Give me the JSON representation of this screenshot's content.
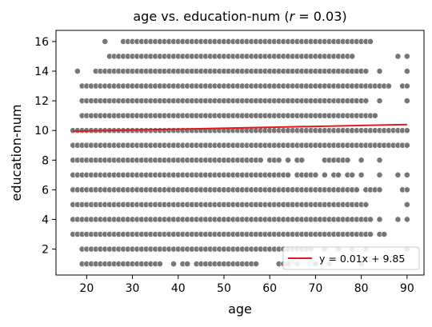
{
  "chart_data": {
    "type": "scatter",
    "title_main": "age vs. education-num (",
    "title_r": "r",
    "title_rest": " = 0.03)",
    "xlabel": "age",
    "ylabel": "education-num",
    "xlim": [
      13.3,
      93.7
    ],
    "ylim": [
      0.25,
      16.75
    ],
    "xticks": [
      20,
      30,
      40,
      50,
      60,
      70,
      80,
      90
    ],
    "yticks": [
      2,
      4,
      6,
      8,
      10,
      12,
      14,
      16
    ],
    "grid": false,
    "legend": {
      "placement": "lower-right",
      "entries": [
        {
          "label": "y = 0.01x + 9.85",
          "color": "#e41a1c"
        }
      ]
    },
    "marker_color": "#777777",
    "fit_line": {
      "color": "#e41a1c",
      "x": [
        17,
        90
      ],
      "y": [
        9.95,
        10.4
      ]
    },
    "rows": [
      {
        "education_num": 16,
        "ages": "24,28-82"
      },
      {
        "education_num": 15,
        "ages": "25-78,88,90"
      },
      {
        "education_num": 14,
        "ages": "18,22-81,84,90"
      },
      {
        "education_num": 13,
        "ages": "19-86,89,90"
      },
      {
        "education_num": 12,
        "ages": "19-81,84,90"
      },
      {
        "education_num": 11,
        "ages": "19-83"
      },
      {
        "education_num": 10,
        "ages": "17-90"
      },
      {
        "education_num": 9,
        "ages": "17-90"
      },
      {
        "education_num": 8,
        "ages": "17-58,60-62,64,66,67,72-77,80,84"
      },
      {
        "education_num": 7,
        "ages": "17-64,66-70,72,74,75,77,78,80,84,88,90"
      },
      {
        "education_num": 6,
        "ages": "17-79,81-84,89,90"
      },
      {
        "education_num": 5,
        "ages": "17-81,90"
      },
      {
        "education_num": 4,
        "ages": "17-82,84,88,90"
      },
      {
        "education_num": 3,
        "ages": "17-82,84,85"
      },
      {
        "education_num": 2,
        "ages": "19-69,72,75,78,81,90"
      },
      {
        "education_num": 1,
        "ages": "19-36,39,41,42,44-57,62-64,66,70,73,80"
      }
    ]
  }
}
